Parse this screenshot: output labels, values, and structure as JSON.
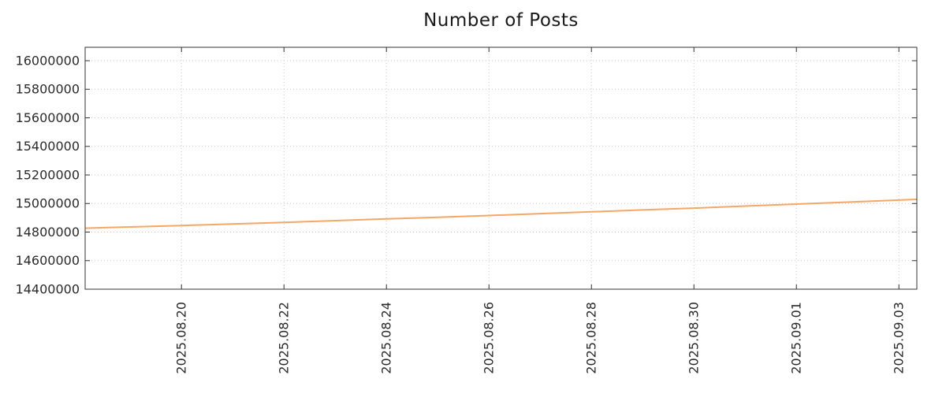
{
  "chart_data": {
    "type": "line",
    "title": "Number of Posts",
    "x_base_date": "2025.08.18",
    "xlim_days": [
      0.12,
      16.35
    ],
    "ylim": [
      14400000,
      16094000
    ],
    "yticks": [
      14400000,
      14600000,
      14800000,
      15000000,
      15200000,
      15400000,
      15600000,
      15800000,
      16000000
    ],
    "xticks": [
      "2025.08.20",
      "2025.08.22",
      "2025.08.24",
      "2025.08.26",
      "2025.08.28",
      "2025.08.30",
      "2025.09.01",
      "2025.09.03"
    ],
    "grid": true,
    "legend": "none",
    "series": [
      {
        "name": "Number of Posts",
        "color": "#f5a765",
        "dates": [
          "2025.08.18",
          "2025.08.19",
          "2025.08.20",
          "2025.08.21",
          "2025.08.22",
          "2025.08.23",
          "2025.08.24",
          "2025.08.25",
          "2025.08.26",
          "2025.08.27",
          "2025.08.28",
          "2025.08.29",
          "2025.08.30",
          "2025.08.31",
          "2025.09.01",
          "2025.09.02",
          "2025.09.03"
        ],
        "values": [
          14826000,
          14836000,
          14846000,
          14857000,
          14868000,
          14880000,
          14892000,
          14904000,
          14916000,
          14929000,
          14942000,
          14955000,
          14968000,
          14982000,
          14996000,
          15010000,
          15024000
        ],
        "trailing_point": {
          "day": 16.35,
          "value": 15029000
        }
      }
    ],
    "colors": {
      "axis": "#333333",
      "grid": "#c9c9c9",
      "text": "#2b2b2b",
      "background": "#ffffff"
    }
  }
}
